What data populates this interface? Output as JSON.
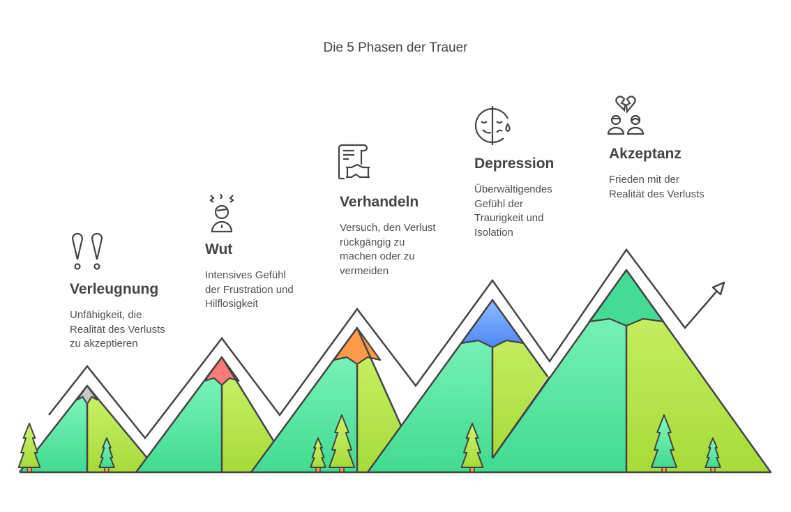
{
  "title": "Die 5 Phasen der Trauer",
  "phases": [
    {
      "heading": "Verleugnung",
      "lines": [
        "Unfähigkeit, die",
        "Realität des Verlusts",
        "zu akzeptieren"
      ],
      "icon": "exclamation-marks-icon",
      "cap_color": "#c8c8c8"
    },
    {
      "heading": "Wut",
      "lines": [
        "Intensives Gefühl",
        "der Frustration und",
        "Hilflosigkeit"
      ],
      "icon": "angry-person-icon",
      "cap_color": "#ff7b7b"
    },
    {
      "heading": "Verhandeln",
      "lines": [
        "Versuch, den Verlust",
        "rückgängig zu",
        "machen oder zu",
        "vermeiden"
      ],
      "icon": "contract-handshake-icon",
      "cap_color": "#ff9a4a"
    },
    {
      "heading": "Depression",
      "lines": [
        "Überwältigendes",
        "Gefühl der",
        "Traurigkeit und",
        "Isolation"
      ],
      "icon": "sad-face-tear-icon",
      "cap_color": "#5b8ff9"
    },
    {
      "heading": "Akzeptanz",
      "lines": [
        "Frieden mit der",
        "Realität des Verlusts"
      ],
      "icon": "broken-heart-couple-icon",
      "cap_color": "#44dc94"
    }
  ],
  "colors": {
    "outline": "#444444",
    "mountain_left": "#5ee8a6",
    "mountain_right": "#bdeb55",
    "text": "#444444"
  }
}
